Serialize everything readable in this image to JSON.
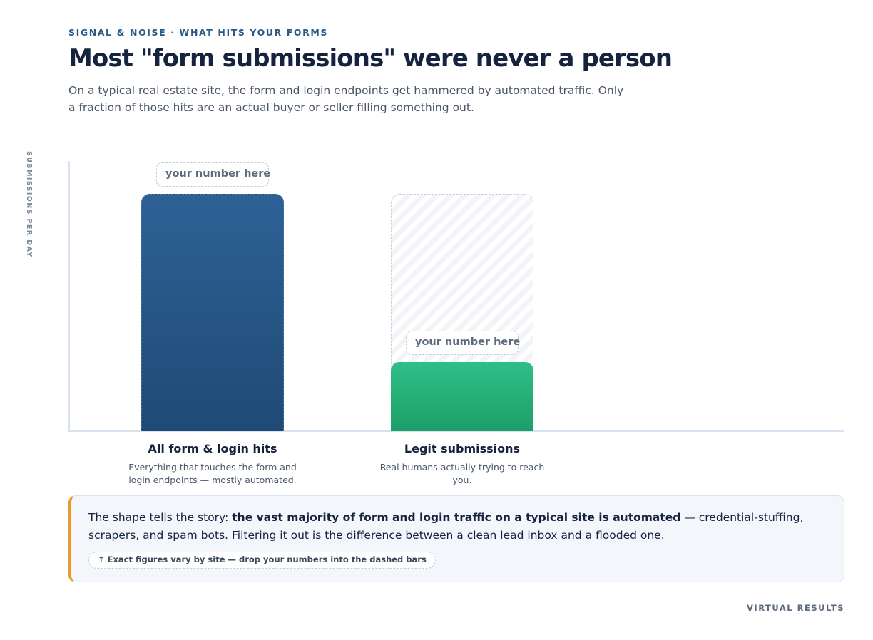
{
  "header": {
    "eyebrow": "SIGNAL & NOISE · WHAT HITS YOUR FORMS",
    "title": "Most \"form submissions\" were never a person",
    "subtitle": "On a typical real estate site, the form and login endpoints get hammered by automated traffic. Only a fraction of those hits are an actual buyer or seller filling something out."
  },
  "chart_data": {
    "type": "bar",
    "ylabel": "SUBMISSIONS PER DAY",
    "xlabel": "",
    "ylim": [
      0,
      100
    ],
    "grid": false,
    "values_shown": false,
    "categories": [
      "All form & login hits",
      "Legit submissions"
    ],
    "category_descriptions": [
      "Everything that touches the form and login endpoints — mostly automated.",
      "Real humans actually trying to reach you."
    ],
    "values": [
      100,
      29
    ],
    "value_placeholders": [
      "your number here",
      "your number here"
    ],
    "colors": [
      "#2a5a8a",
      "#22b077"
    ]
  },
  "callout": {
    "lead": "The shape tells the story: ",
    "emphasis": "the vast majority of form and login traffic on a typical site is automated",
    "rest": " — credential-stuffing, scrapers, and spam bots. Filtering it out is the difference between a clean lead inbox and a flooded one.",
    "note": "↑ Exact figures vary by site — drop your numbers into the dashed bars"
  },
  "footer": {
    "brand": "VIRTUAL RESULTS"
  }
}
